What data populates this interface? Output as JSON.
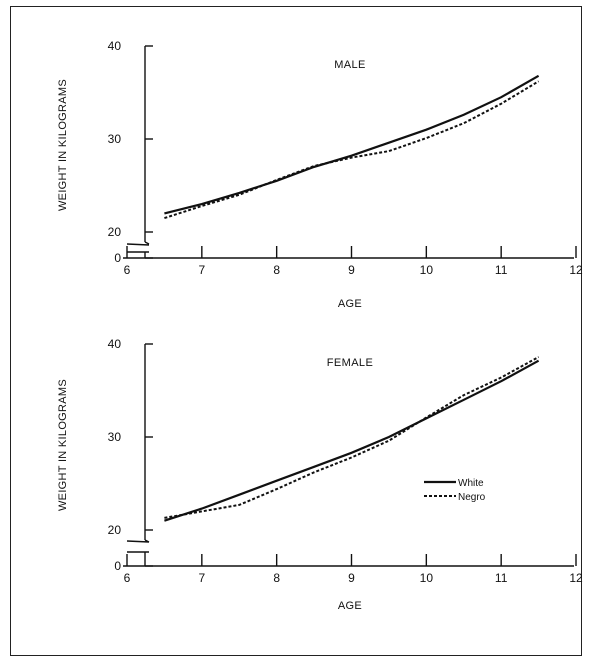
{
  "chart_data": [
    {
      "type": "line",
      "title": "MALE",
      "xlabel": "AGE",
      "ylabel": "WEIGHT IN KILOGRAMS",
      "xlim": [
        6,
        12
      ],
      "ylim": [
        20,
        40
      ],
      "axis_break": true,
      "x_ticks": [
        "6",
        "7",
        "8",
        "9",
        "10",
        "11",
        "12"
      ],
      "y_ticks": [
        "40",
        "30",
        "20",
        "0"
      ],
      "x": [
        6.5,
        7.0,
        7.5,
        8.0,
        8.5,
        9.0,
        9.5,
        10.0,
        10.5,
        11.0,
        11.5
      ],
      "series": [
        {
          "name": "White",
          "values": [
            22.0,
            23.0,
            24.2,
            25.5,
            27.0,
            28.2,
            29.6,
            31.0,
            32.6,
            34.5,
            36.8
          ]
        },
        {
          "name": "Negro",
          "values": [
            21.5,
            22.8,
            24.0,
            25.6,
            27.1,
            28.0,
            28.7,
            30.1,
            31.7,
            33.8,
            36.2
          ]
        }
      ],
      "legend": false
    },
    {
      "type": "line",
      "title": "FEMALE",
      "xlabel": "AGE",
      "ylabel": "WEIGHT IN KILOGRAMS",
      "xlim": [
        6,
        12
      ],
      "ylim": [
        20,
        40
      ],
      "axis_break": true,
      "x_ticks": [
        "6",
        "7",
        "8",
        "9",
        "10",
        "11",
        "12"
      ],
      "y_ticks": [
        "40",
        "30",
        "20",
        "0"
      ],
      "x": [
        6.5,
        7.0,
        7.5,
        8.0,
        8.5,
        9.0,
        9.5,
        10.0,
        10.5,
        11.0,
        11.5
      ],
      "series": [
        {
          "name": "White",
          "values": [
            21.0,
            22.3,
            23.8,
            25.3,
            26.8,
            28.3,
            30.0,
            32.0,
            34.0,
            36.0,
            38.2
          ]
        },
        {
          "name": "Negro",
          "values": [
            21.3,
            22.0,
            22.7,
            24.4,
            26.2,
            27.8,
            29.6,
            32.1,
            34.5,
            36.4,
            38.6
          ]
        }
      ],
      "legend": true,
      "legend_position": "right"
    }
  ]
}
